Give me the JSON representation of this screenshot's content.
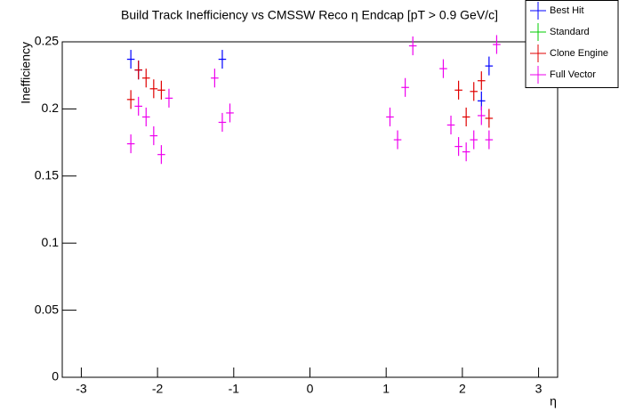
{
  "chart_data": {
    "type": "errorbar",
    "title": "Build Track Inefficiency vs CMSSW Reco η Endcap [pT > 0.9 GeV/c]",
    "x_label": "η",
    "y_label": "Inefficiency",
    "xlim": [
      -3.25,
      3.25
    ],
    "xticks": [
      -3,
      -2,
      -1,
      0,
      1,
      2,
      3
    ],
    "ylim": [
      0,
      0.25
    ],
    "yticks": [
      0,
      0.05,
      0.1,
      0.15,
      0.2,
      0.25
    ],
    "xerr": 0.05,
    "series": [
      {
        "name": "Best Hit",
        "color": "#0000ff",
        "x": [
          -2.35,
          -2.25,
          -1.15,
          2.25,
          2.35
        ],
        "values": [
          0.237,
          0.229,
          0.237,
          0.206,
          0.232
        ],
        "errors": [
          0.007,
          0.007,
          0.007,
          0.007,
          0.007
        ]
      },
      {
        "name": "Standard",
        "color": "#00cc00",
        "x": [],
        "values": [],
        "errors": []
      },
      {
        "name": "Clone Engine",
        "color": "#e00000",
        "x": [
          -2.35,
          -2.25,
          -2.15,
          -2.05,
          -1.95,
          1.95,
          2.05,
          2.15,
          2.25,
          2.35
        ],
        "values": [
          0.207,
          0.229,
          0.223,
          0.215,
          0.214,
          0.214,
          0.194,
          0.213,
          0.221,
          0.193
        ],
        "errors": [
          0.007,
          0.007,
          0.007,
          0.007,
          0.007,
          0.007,
          0.007,
          0.007,
          0.007,
          0.007
        ]
      },
      {
        "name": "Full Vector",
        "color": "#ee00ee",
        "x": [
          -2.35,
          -2.25,
          -2.15,
          -2.05,
          -1.95,
          -1.85,
          -1.25,
          -1.15,
          -1.05,
          1.05,
          1.15,
          1.25,
          1.35,
          1.75,
          1.85,
          1.95,
          2.05,
          2.15,
          2.25,
          2.35,
          2.45
        ],
        "values": [
          0.174,
          0.202,
          0.194,
          0.18,
          0.166,
          0.208,
          0.223,
          0.19,
          0.197,
          0.194,
          0.177,
          0.216,
          0.247,
          0.23,
          0.188,
          0.172,
          0.168,
          0.177,
          0.195,
          0.177,
          0.248
        ],
        "errors": [
          0.007,
          0.007,
          0.007,
          0.007,
          0.007,
          0.007,
          0.007,
          0.007,
          0.007,
          0.007,
          0.007,
          0.007,
          0.007,
          0.007,
          0.007,
          0.007,
          0.007,
          0.007,
          0.007,
          0.007,
          0.007
        ]
      }
    ]
  }
}
